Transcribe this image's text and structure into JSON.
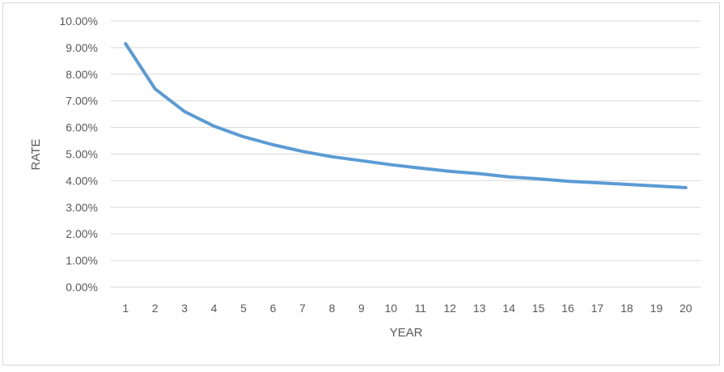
{
  "chart_data": {
    "type": "line",
    "xlabel": "YEAR",
    "ylabel": "RATE",
    "ylim": [
      0,
      10
    ],
    "y_tick_values": [
      0,
      1,
      2,
      3,
      4,
      5,
      6,
      7,
      8,
      9,
      10
    ],
    "y_tick_labels": [
      "0.00%",
      "1.00%",
      "2.00%",
      "3.00%",
      "4.00%",
      "5.00%",
      "6.00%",
      "7.00%",
      "8.00%",
      "9.00%",
      "10.00%"
    ],
    "x_tick_labels": [
      "1",
      "2",
      "3",
      "4",
      "5",
      "6",
      "7",
      "8",
      "9",
      "10",
      "11",
      "12",
      "13",
      "14",
      "15",
      "16",
      "17",
      "18",
      "19",
      "20"
    ],
    "x": [
      1,
      2,
      3,
      4,
      5,
      6,
      7,
      8,
      9,
      10,
      11,
      12,
      13,
      14,
      15,
      16,
      17,
      18,
      19,
      20
    ],
    "series": [
      {
        "values": [
          9.15,
          7.45,
          6.6,
          6.05,
          5.65,
          5.35,
          5.1,
          4.9,
          4.75,
          4.6,
          4.47,
          4.35,
          4.26,
          4.14,
          4.07,
          3.98,
          3.92,
          3.86,
          3.8,
          3.74
        ],
        "color": "#5b9bd5"
      }
    ],
    "grid": true,
    "gridline_color": "#d9d9d9",
    "legend": "none"
  }
}
